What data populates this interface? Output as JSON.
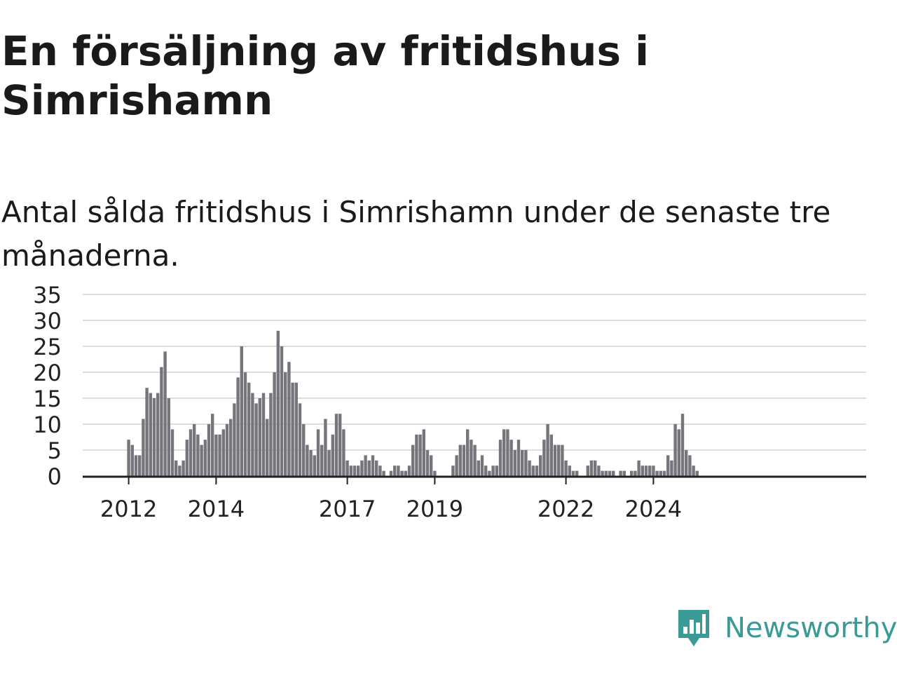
{
  "header": {
    "title": "En försäljning av fritidshus i Simrishamn",
    "subtitle": "Antal sålda fritidshus i Simrishamn under de senaste tre månaderna."
  },
  "brand": {
    "name": "Newsworthy",
    "color": "#3a9a96",
    "icon": "newsworthy-logo-icon"
  },
  "colors": {
    "bar": "#76757b",
    "highlight": "#2b9a9e",
    "grid": "#dddddd",
    "axis": "#222222"
  },
  "chart_data": {
    "type": "bar",
    "x_start": "2011-01",
    "ylim": [
      0,
      35
    ],
    "yticks": [
      0,
      5,
      10,
      15,
      20,
      25,
      30,
      35
    ],
    "xticks": [
      {
        "label": "2012",
        "index": 12
      },
      {
        "label": "2014",
        "index": 36
      },
      {
        "label": "2017",
        "index": 72
      },
      {
        "label": "2019",
        "index": 96
      },
      {
        "label": "2022",
        "index": 132
      },
      {
        "label": "2024",
        "index": 156
      }
    ],
    "values": [
      0,
      0,
      0,
      0,
      0,
      0,
      0,
      0,
      0,
      0,
      0,
      0,
      7,
      6,
      4,
      4,
      11,
      17,
      16,
      15,
      16,
      21,
      24,
      15,
      9,
      3,
      2,
      3,
      7,
      9,
      10,
      8,
      6,
      7,
      10,
      12,
      8,
      8,
      9,
      10,
      11,
      14,
      19,
      25,
      20,
      18,
      16,
      14,
      15,
      16,
      11,
      16,
      20,
      28,
      25,
      20,
      22,
      18,
      18,
      14,
      10,
      6,
      5,
      4,
      9,
      6,
      11,
      5,
      8,
      12,
      12,
      9,
      3,
      2,
      2,
      2,
      3,
      4,
      3,
      4,
      3,
      2,
      1,
      0,
      1,
      2,
      2,
      1,
      1,
      2,
      6,
      8,
      8,
      9,
      5,
      4,
      1,
      0,
      0,
      0,
      0,
      2,
      4,
      6,
      6,
      9,
      7,
      6,
      3,
      4,
      2,
      1,
      2,
      2,
      7,
      9,
      9,
      7,
      5,
      7,
      5,
      5,
      3,
      2,
      2,
      4,
      7,
      10,
      8,
      6,
      6,
      6,
      3,
      2,
      1,
      1,
      0,
      0,
      2,
      3,
      3,
      2,
      1,
      1,
      1,
      1,
      0,
      1,
      1,
      0,
      1,
      1,
      3,
      2,
      2,
      2,
      2,
      1,
      1,
      1,
      4,
      3,
      10,
      9,
      12,
      5,
      4,
      2,
      1
    ],
    "highlight_index": 169,
    "annotation": "1"
  }
}
